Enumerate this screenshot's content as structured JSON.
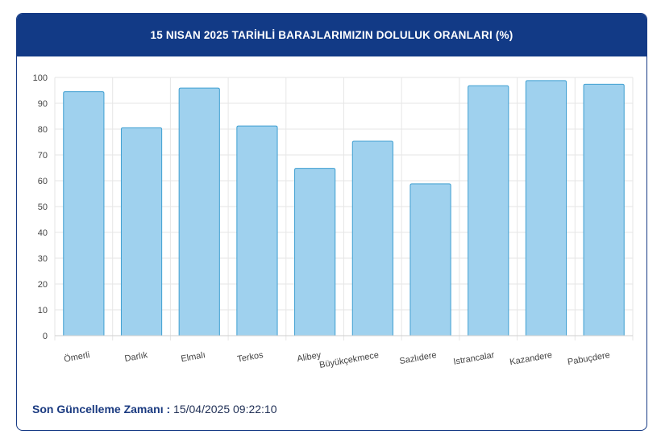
{
  "header": {
    "title": "15 NISAN 2025 TARİHLİ BARAJLARIMIZIN DOLULUK ORANLARI (%)"
  },
  "footer": {
    "label": "Son Güncelleme Zamanı :",
    "value": "15/04/2025 09:22:10"
  },
  "colors": {
    "header_bg": "#123a86",
    "bar_fill": "#9fd1ee",
    "bar_stroke": "#3f9fd1",
    "grid": "#e6e6e6"
  },
  "chart_data": {
    "type": "bar",
    "title": "15 NISAN 2025 TARİHLİ BARAJLARIMIZIN DOLULUK ORANLARI (%)",
    "categories": [
      "Ömerli",
      "Darlık",
      "Elmalı",
      "Terkos",
      "Alibey",
      "Büyükçekmece",
      "Sazlıdere",
      "Istrancalar",
      "Kazandere",
      "Pabuçdere"
    ],
    "values": [
      94.5,
      80.5,
      95.9,
      81.2,
      64.8,
      75.3,
      58.8,
      96.8,
      98.8,
      97.4
    ],
    "ylim": [
      0,
      100
    ],
    "yticks": [
      "0",
      "10",
      "20",
      "30",
      "40",
      "50",
      "60",
      "70",
      "80",
      "90",
      "100"
    ],
    "xlabel": "",
    "ylabel": "",
    "grid": true,
    "legend": "none"
  }
}
